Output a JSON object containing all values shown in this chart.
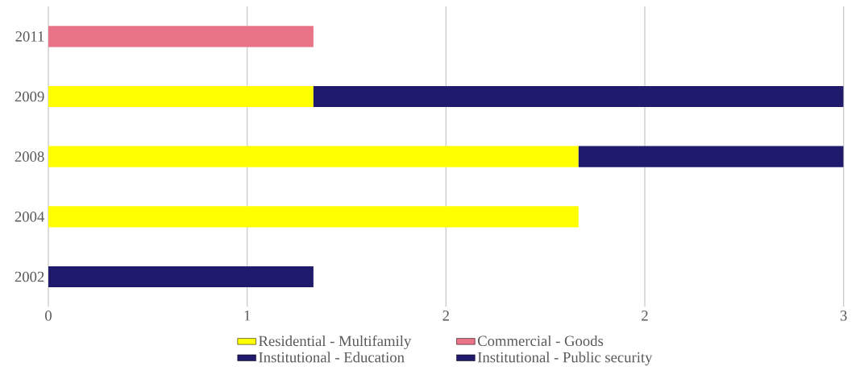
{
  "chart_data": {
    "type": "bar",
    "orientation": "horizontal",
    "stacked": true,
    "categories": [
      "2011",
      "2009",
      "2008",
      "2004",
      "2002"
    ],
    "series": [
      {
        "name": "Residential - Multifamily",
        "color": "#ffff00",
        "values": [
          null,
          1,
          2,
          2,
          null
        ]
      },
      {
        "name": "Commercial - Goods",
        "color": "#e97387",
        "values": [
          1,
          null,
          null,
          null,
          null
        ]
      },
      {
        "name": "Institutional - Education",
        "color": "#1f1a6b",
        "values": [
          null,
          2,
          1,
          null,
          null
        ]
      },
      {
        "name": "Institutional - Public security",
        "color": "#1f1a6b",
        "values": [
          null,
          null,
          null,
          null,
          1
        ]
      }
    ],
    "xlim": [
      0,
      3
    ],
    "xticks": [
      0,
      {
        "value": 0.75,
        "label": "1"
      },
      {
        "value": 1.5,
        "label": "2"
      },
      {
        "value": 2.25,
        "label": "2"
      },
      3
    ],
    "grid": "x",
    "legend": "bottom"
  }
}
